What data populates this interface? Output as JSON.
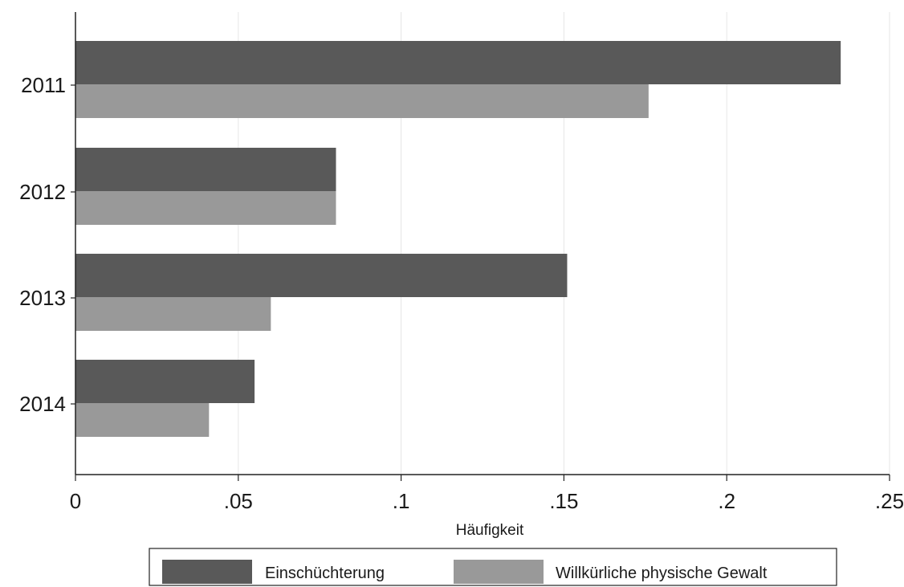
{
  "chart_data": {
    "type": "bar",
    "orientation": "horizontal",
    "categories": [
      "2011",
      "2012",
      "2013",
      "2014"
    ],
    "series": [
      {
        "name": "Einschüchterung",
        "values": [
          0.235,
          0.08,
          0.151,
          0.055
        ],
        "color": "#595959"
      },
      {
        "name": "Willkürliche physische Gewalt",
        "values": [
          0.176,
          0.08,
          0.06,
          0.041
        ],
        "color": "#999999"
      }
    ],
    "xlabel": "Häufigkeit",
    "ylabel": "",
    "xlim": [
      0,
      0.25
    ],
    "xticks": [
      0,
      0.05,
      0.1,
      0.15,
      0.2,
      0.25
    ],
    "xtick_labels": [
      "0",
      ".05",
      ".1",
      ".15",
      ".2",
      ".25"
    ],
    "grid": "vertical",
    "legend_position": "bottom"
  }
}
